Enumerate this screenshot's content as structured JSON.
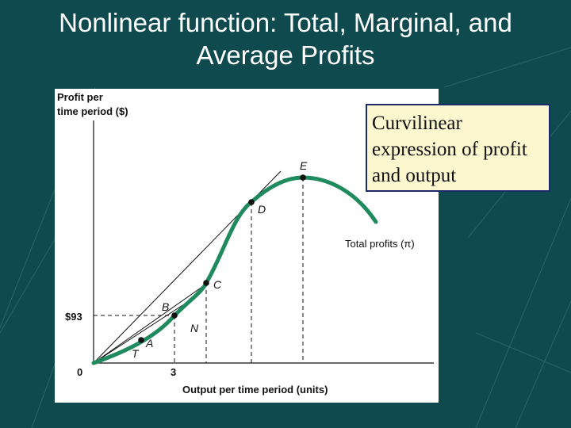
{
  "slide": {
    "title_line1": "Nonlinear function:  Total, Marginal, and",
    "title_line2": "Average Profits"
  },
  "callout": {
    "text": "Curvilinear expression of profit and output"
  },
  "chart_data": {
    "type": "line",
    "ylabel_line1": "Profit per",
    "ylabel_line2": "time period ($)",
    "xlabel": "Output per time period (units)",
    "origin_label": "0",
    "x_tick": {
      "value": 3,
      "label": "3"
    },
    "y_tick": {
      "value": 93,
      "label": "$93"
    },
    "series": [
      {
        "name": "Total profits (π)",
        "color": "#1e8a5e"
      }
    ],
    "points": [
      {
        "name": "T"
      },
      {
        "name": "A"
      },
      {
        "name": "B"
      },
      {
        "name": "N"
      },
      {
        "name": "C"
      },
      {
        "name": "D"
      },
      {
        "name": "E"
      }
    ],
    "grid": false
  }
}
